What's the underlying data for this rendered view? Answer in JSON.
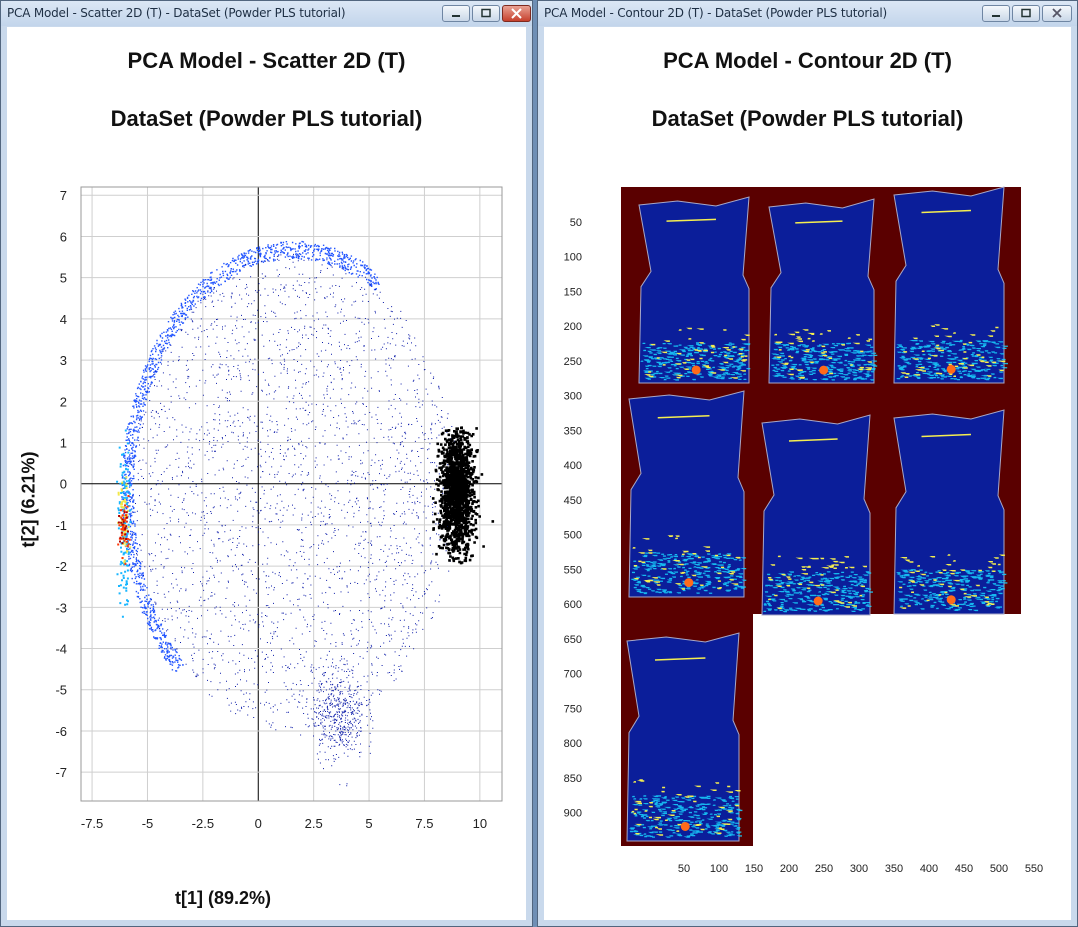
{
  "left_window": {
    "title": "PCA Model - Scatter 2D (T) - DataSet (Powder PLS tutorial)",
    "plot_title": "PCA Model - Scatter 2D (T)",
    "plot_subtitle": "DataSet (Powder PLS tutorial)",
    "xlabel": "t[1] (89.2%)",
    "ylabel": "t[2] (6.21%)"
  },
  "right_window": {
    "title": "PCA Model - Contour 2D (T) - DataSet (Powder PLS tutorial)",
    "plot_title": "PCA Model - Contour 2D (T)",
    "plot_subtitle": "DataSet (Powder PLS tutorial)"
  },
  "window_controls": {
    "minimize_icon": "minimize-icon",
    "maximize_icon": "maximize-icon",
    "close_icon": "close-icon"
  },
  "chart_data": [
    {
      "type": "scatter",
      "title": "PCA Model - Scatter 2D (T)",
      "subtitle": "DataSet (Powder PLS tutorial)",
      "xlabel": "t[1] (89.2%)",
      "ylabel": "t[2] (6.21%)",
      "xlim": [
        -8,
        11
      ],
      "ylim": [
        -7.7,
        7.2
      ],
      "x_ticks": [
        "-7.5",
        "-5",
        "-2.5",
        "0",
        "2.5",
        "5",
        "7.5",
        "10"
      ],
      "y_ticks": [
        "7",
        "6",
        "5",
        "4",
        "3",
        "2",
        "1",
        "0",
        "-1",
        "-2",
        "-3",
        "-4",
        "-5",
        "-6",
        "-7"
      ],
      "grid": true,
      "density_colors": [
        "#0a1aa8",
        "#2255ff",
        "#19b6ff",
        "#f2e84a",
        "#ff3a0a",
        "#b00000"
      ],
      "highlighted_cluster_color": "#000000"
    },
    {
      "type": "heatmap",
      "title": "PCA Model - Contour 2D (T)",
      "subtitle": "DataSet (Powder PLS tutorial)",
      "x_ticks": [
        "50",
        "100",
        "150",
        "200",
        "250",
        "300",
        "350",
        "400",
        "450",
        "500",
        "550"
      ],
      "y_ticks": [
        "50",
        "100",
        "150",
        "200",
        "250",
        "300",
        "350",
        "400",
        "450",
        "500",
        "550",
        "600",
        "650",
        "700",
        "750",
        "800",
        "850",
        "900"
      ],
      "background_color": "#5a0000",
      "object_color": "#0b1e9a",
      "highlight_colors": [
        "#19d4ff",
        "#f5ee50",
        "#ff6a1a"
      ],
      "panels": 7
    }
  ]
}
